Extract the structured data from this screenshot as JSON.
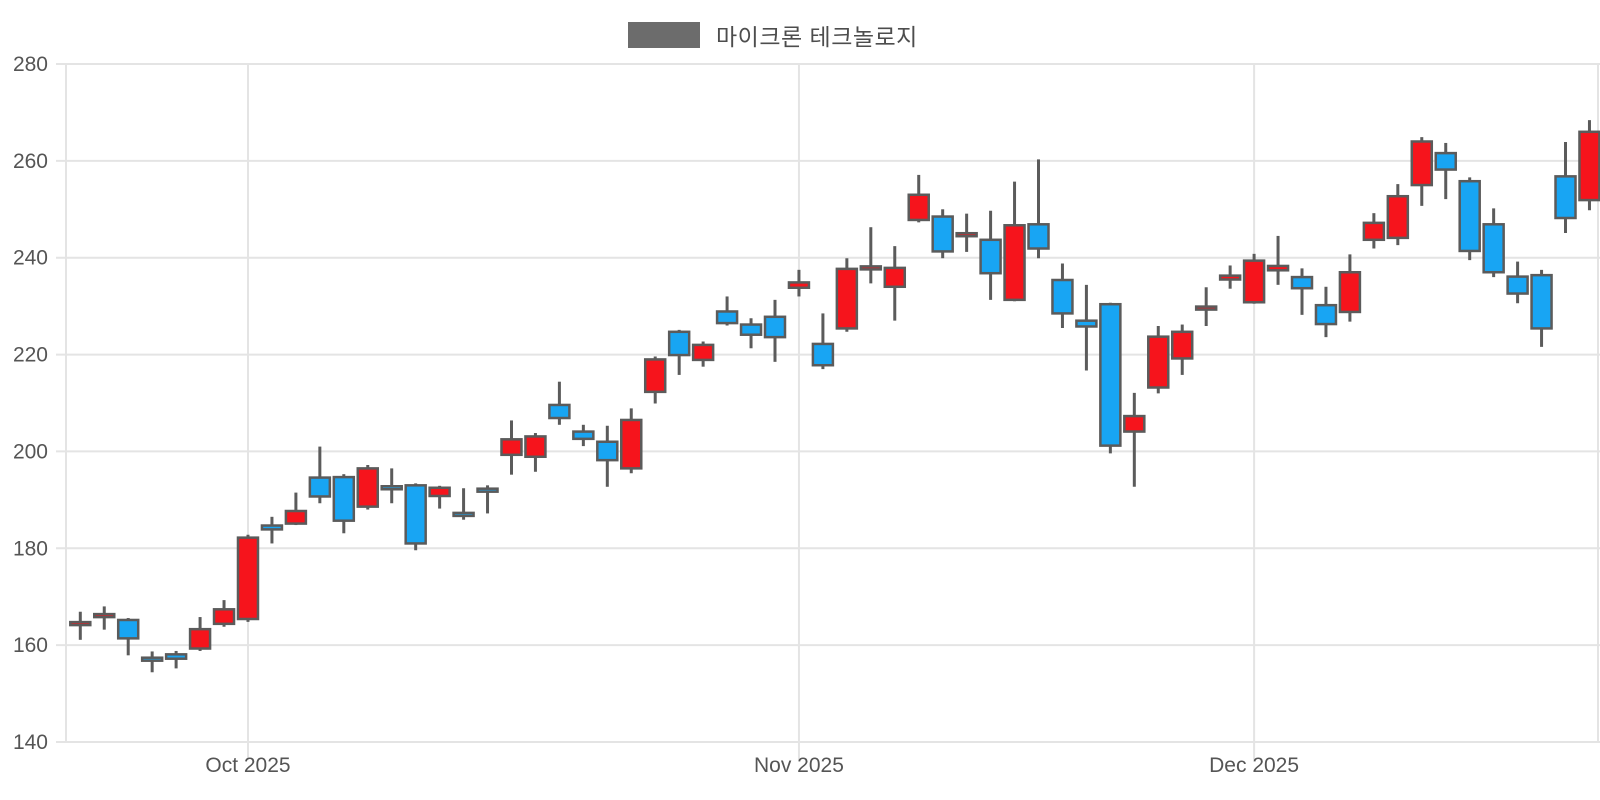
{
  "legend": {
    "series_label": "마이크론 테크놀로지",
    "swatch_color": "#6c6c6c"
  },
  "chart_data": {
    "type": "candlestick",
    "title": "마이크론 테크놀로지",
    "xlabel": "",
    "ylabel": "",
    "grid": true,
    "legend_position": "top-center",
    "y_axis": {
      "ticks": [
        280,
        260,
        240,
        220,
        200,
        180,
        160,
        140
      ],
      "range": [
        140,
        283
      ]
    },
    "x_axis": {
      "ticks": [
        {
          "label": "Oct 2025",
          "candle_index": 7
        },
        {
          "label": "Nov 2025",
          "candle_index": 30
        },
        {
          "label": "Dec 2025",
          "candle_index": 49
        }
      ]
    },
    "colors": {
      "up": "#f6141c",
      "down": "#18a5f3",
      "wick": "#5b5b5b",
      "body_border": "#5b5b5b",
      "grid": "#e4e4e4",
      "axis_label": "#555555"
    },
    "candle_columns": [
      "open",
      "high",
      "low",
      "close"
    ],
    "candles": [
      [
        164.4,
        166.9,
        161.1,
        164.5
      ],
      [
        165.8,
        168.0,
        163.2,
        166.4
      ],
      [
        165.2,
        165.6,
        157.9,
        161.4
      ],
      [
        157.4,
        158.7,
        154.4,
        156.8
      ],
      [
        158.1,
        158.8,
        155.2,
        157.2
      ],
      [
        159.3,
        165.8,
        158.8,
        163.3
      ],
      [
        164.4,
        169.3,
        163.8,
        167.4
      ],
      [
        165.4,
        182.8,
        164.8,
        182.2
      ],
      [
        184.7,
        186.5,
        181.0,
        183.9
      ],
      [
        185.1,
        191.5,
        184.8,
        187.7
      ],
      [
        194.6,
        201.0,
        189.3,
        190.7
      ],
      [
        194.7,
        195.3,
        183.1,
        185.7
      ],
      [
        188.6,
        197.2,
        188.0,
        196.5
      ],
      [
        192.8,
        196.5,
        189.3,
        192.2
      ],
      [
        193.0,
        193.4,
        179.6,
        181.0
      ],
      [
        190.8,
        192.9,
        188.2,
        192.5
      ],
      [
        187.1,
        192.4,
        185.9,
        186.9
      ],
      [
        192.1,
        193.0,
        187.2,
        191.9
      ],
      [
        199.3,
        206.4,
        195.2,
        202.5
      ],
      [
        198.9,
        203.8,
        195.8,
        203.1
      ],
      [
        209.6,
        214.4,
        205.5,
        206.9
      ],
      [
        204.1,
        205.5,
        201.1,
        202.6
      ],
      [
        202.0,
        205.3,
        192.7,
        198.2
      ],
      [
        196.5,
        208.9,
        195.5,
        206.5
      ],
      [
        212.3,
        219.6,
        209.9,
        219.0
      ],
      [
        224.7,
        225.1,
        215.8,
        219.9
      ],
      [
        218.9,
        222.7,
        217.5,
        222.0
      ],
      [
        228.9,
        232.0,
        226.0,
        226.5
      ],
      [
        226.2,
        227.5,
        221.3,
        224.1
      ],
      [
        227.8,
        231.3,
        218.5,
        223.6
      ],
      [
        233.8,
        237.5,
        232.0,
        234.9
      ],
      [
        222.2,
        228.5,
        217.0,
        217.8
      ],
      [
        225.4,
        239.9,
        224.7,
        237.7
      ],
      [
        237.6,
        246.3,
        234.7,
        238.2
      ],
      [
        234.0,
        242.4,
        227.0,
        237.9
      ],
      [
        247.8,
        257.1,
        247.3,
        253.0
      ],
      [
        248.5,
        250.0,
        239.9,
        241.3
      ],
      [
        244.6,
        249.1,
        241.2,
        244.9
      ],
      [
        243.7,
        249.7,
        231.3,
        236.8
      ],
      [
        231.3,
        255.7,
        231.0,
        246.7
      ],
      [
        246.9,
        260.3,
        239.9,
        241.9
      ],
      [
        235.4,
        238.8,
        225.5,
        228.5
      ],
      [
        227.0,
        234.4,
        216.7,
        225.8
      ],
      [
        230.4,
        230.7,
        199.6,
        201.2
      ],
      [
        204.1,
        212.1,
        192.7,
        207.3
      ],
      [
        213.2,
        225.9,
        212.0,
        223.7
      ],
      [
        219.2,
        226.2,
        215.8,
        224.7
      ],
      [
        229.3,
        233.9,
        225.9,
        229.9
      ],
      [
        235.5,
        238.4,
        233.6,
        236.3
      ],
      [
        230.8,
        240.8,
        230.5,
        239.4
      ],
      [
        237.4,
        244.5,
        234.4,
        238.3
      ],
      [
        236.0,
        237.8,
        228.2,
        233.7
      ],
      [
        230.2,
        234.0,
        223.6,
        226.3
      ],
      [
        228.8,
        240.7,
        226.8,
        237.0
      ],
      [
        243.7,
        249.2,
        241.9,
        247.2
      ],
      [
        244.1,
        255.2,
        242.6,
        252.7
      ],
      [
        255.0,
        264.9,
        250.7,
        264.0
      ],
      [
        261.6,
        263.7,
        252.1,
        258.2
      ],
      [
        255.8,
        256.6,
        239.5,
        241.4
      ],
      [
        246.9,
        250.2,
        236.0,
        237.0
      ],
      [
        236.1,
        239.2,
        230.6,
        232.6
      ],
      [
        236.4,
        237.5,
        221.6,
        225.4
      ],
      [
        256.8,
        263.9,
        245.1,
        248.2
      ],
      [
        251.9,
        268.4,
        249.8,
        266.0
      ]
    ]
  }
}
